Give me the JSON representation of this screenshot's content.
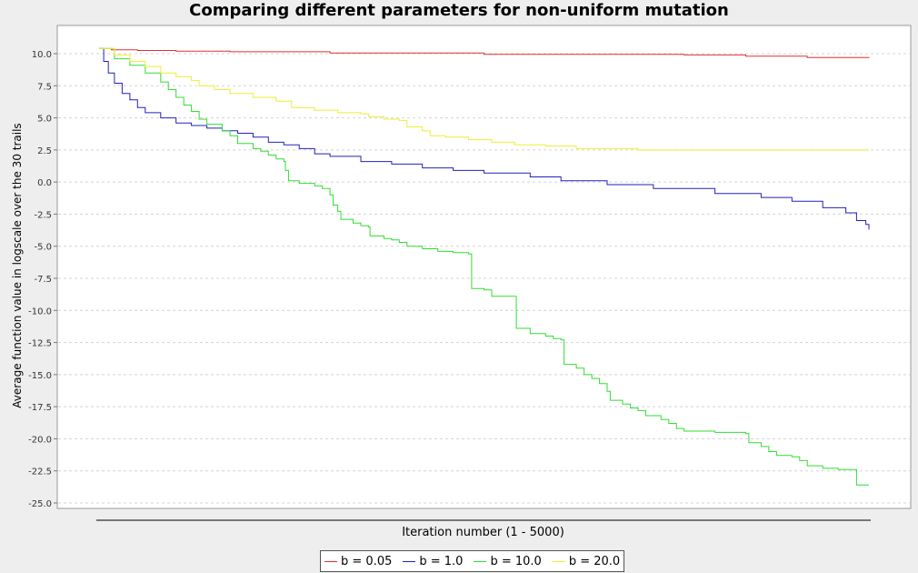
{
  "chart_data": {
    "type": "line",
    "title": "Comparing different parameters for non-uniform mutation",
    "xlabel": "Iteration number (1 - 5000)",
    "ylabel": "Average function value in logscale over the 30 trails",
    "xlim": [
      0,
      5000
    ],
    "ylim": [
      -25.5,
      12.0
    ],
    "y_ticks": [
      "10.0",
      "7.5",
      "5.0",
      "2.5",
      "0.0",
      "-2.5",
      "-5.0",
      "-7.5",
      "-10.0",
      "-12.5",
      "-15.0",
      "-17.5",
      "-20.0",
      "-22.5",
      "-25.0"
    ],
    "x_tick_labels_shown": false,
    "grid": true,
    "legend_position": "bottom",
    "series": [
      {
        "name": "b = 0.05",
        "color": "#dd3333",
        "points": [
          [
            0,
            10.4
          ],
          [
            80,
            10.3
          ],
          [
            250,
            10.25
          ],
          [
            500,
            10.2
          ],
          [
            850,
            10.15
          ],
          [
            1500,
            10.05
          ],
          [
            2500,
            9.95
          ],
          [
            3800,
            9.9
          ],
          [
            4200,
            9.8
          ],
          [
            4600,
            9.7
          ],
          [
            5000,
            9.65
          ]
        ]
      },
      {
        "name": "b = 1.0",
        "color": "#2222bb",
        "points": [
          [
            0,
            10.4
          ],
          [
            30,
            9.4
          ],
          [
            60,
            8.5
          ],
          [
            100,
            7.7
          ],
          [
            150,
            6.9
          ],
          [
            200,
            6.4
          ],
          [
            250,
            5.8
          ],
          [
            300,
            5.4
          ],
          [
            400,
            5.0
          ],
          [
            500,
            4.6
          ],
          [
            600,
            4.4
          ],
          [
            700,
            4.2
          ],
          [
            800,
            4.0
          ],
          [
            900,
            3.8
          ],
          [
            1000,
            3.5
          ],
          [
            1100,
            3.1
          ],
          [
            1200,
            2.9
          ],
          [
            1300,
            2.6
          ],
          [
            1400,
            2.2
          ],
          [
            1500,
            2.0
          ],
          [
            1700,
            1.6
          ],
          [
            1900,
            1.4
          ],
          [
            2100,
            1.1
          ],
          [
            2300,
            0.9
          ],
          [
            2500,
            0.7
          ],
          [
            2800,
            0.4
          ],
          [
            3000,
            0.1
          ],
          [
            3300,
            -0.2
          ],
          [
            3600,
            -0.5
          ],
          [
            4000,
            -0.9
          ],
          [
            4300,
            -1.2
          ],
          [
            4500,
            -1.5
          ],
          [
            4700,
            -2.0
          ],
          [
            4850,
            -2.4
          ],
          [
            4920,
            -3.0
          ],
          [
            4980,
            -3.3
          ],
          [
            5000,
            -3.7
          ]
        ]
      },
      {
        "name": "b = 10.0",
        "color": "#33dd33",
        "points": [
          [
            0,
            10.4
          ],
          [
            100,
            9.6
          ],
          [
            200,
            9.1
          ],
          [
            300,
            8.5
          ],
          [
            400,
            7.8
          ],
          [
            450,
            7.2
          ],
          [
            500,
            6.6
          ],
          [
            550,
            6.0
          ],
          [
            600,
            5.5
          ],
          [
            650,
            4.9
          ],
          [
            700,
            4.5
          ],
          [
            800,
            4.0
          ],
          [
            850,
            3.6
          ],
          [
            900,
            3.0
          ],
          [
            1000,
            2.6
          ],
          [
            1050,
            2.4
          ],
          [
            1100,
            2.1
          ],
          [
            1150,
            1.8
          ],
          [
            1200,
            1.6
          ],
          [
            1210,
            0.9
          ],
          [
            1230,
            0.1
          ],
          [
            1300,
            -0.1
          ],
          [
            1400,
            -0.3
          ],
          [
            1450,
            -0.5
          ],
          [
            1500,
            -1.0
          ],
          [
            1520,
            -1.8
          ],
          [
            1550,
            -2.3
          ],
          [
            1570,
            -2.9
          ],
          [
            1650,
            -3.2
          ],
          [
            1700,
            -3.4
          ],
          [
            1750,
            -3.5
          ],
          [
            1760,
            -4.2
          ],
          [
            1850,
            -4.4
          ],
          [
            1900,
            -4.5
          ],
          [
            1950,
            -4.7
          ],
          [
            2000,
            -5.0
          ],
          [
            2100,
            -5.2
          ],
          [
            2200,
            -5.4
          ],
          [
            2300,
            -5.5
          ],
          [
            2400,
            -5.6
          ],
          [
            2420,
            -8.3
          ],
          [
            2500,
            -8.4
          ],
          [
            2550,
            -8.9
          ],
          [
            2700,
            -8.9
          ],
          [
            2710,
            -11.4
          ],
          [
            2800,
            -11.8
          ],
          [
            2900,
            -12.0
          ],
          [
            2950,
            -12.2
          ],
          [
            3000,
            -12.3
          ],
          [
            3020,
            -14.2
          ],
          [
            3100,
            -14.5
          ],
          [
            3150,
            -15.0
          ],
          [
            3200,
            -15.3
          ],
          [
            3250,
            -15.7
          ],
          [
            3300,
            -16.3
          ],
          [
            3320,
            -17.0
          ],
          [
            3400,
            -17.3
          ],
          [
            3450,
            -17.6
          ],
          [
            3500,
            -17.8
          ],
          [
            3550,
            -18.2
          ],
          [
            3650,
            -18.5
          ],
          [
            3700,
            -18.8
          ],
          [
            3750,
            -19.2
          ],
          [
            3800,
            -19.4
          ],
          [
            4000,
            -19.5
          ],
          [
            4200,
            -19.6
          ],
          [
            4220,
            -20.3
          ],
          [
            4300,
            -20.6
          ],
          [
            4350,
            -21.0
          ],
          [
            4400,
            -21.3
          ],
          [
            4500,
            -21.4
          ],
          [
            4550,
            -21.7
          ],
          [
            4600,
            -22.1
          ],
          [
            4700,
            -22.3
          ],
          [
            4800,
            -22.4
          ],
          [
            4900,
            -22.4
          ],
          [
            4920,
            -23.6
          ],
          [
            5000,
            -23.6
          ]
        ]
      },
      {
        "name": "b = 20.0",
        "color": "#eeee33",
        "points": [
          [
            0,
            10.4
          ],
          [
            100,
            9.9
          ],
          [
            200,
            9.4
          ],
          [
            300,
            9.0
          ],
          [
            400,
            8.5
          ],
          [
            500,
            8.2
          ],
          [
            600,
            7.9
          ],
          [
            650,
            7.5
          ],
          [
            750,
            7.2
          ],
          [
            850,
            6.9
          ],
          [
            1000,
            6.6
          ],
          [
            1150,
            6.3
          ],
          [
            1250,
            5.8
          ],
          [
            1400,
            5.6
          ],
          [
            1550,
            5.4
          ],
          [
            1700,
            5.3
          ],
          [
            1750,
            5.1
          ],
          [
            1850,
            4.9
          ],
          [
            1950,
            4.8
          ],
          [
            2000,
            4.3
          ],
          [
            2100,
            4.0
          ],
          [
            2150,
            3.6
          ],
          [
            2250,
            3.5
          ],
          [
            2400,
            3.3
          ],
          [
            2550,
            3.1
          ],
          [
            2700,
            2.9
          ],
          [
            2900,
            2.8
          ],
          [
            3100,
            2.6
          ],
          [
            3500,
            2.5
          ],
          [
            4200,
            2.5
          ],
          [
            5000,
            2.5
          ]
        ]
      }
    ]
  }
}
